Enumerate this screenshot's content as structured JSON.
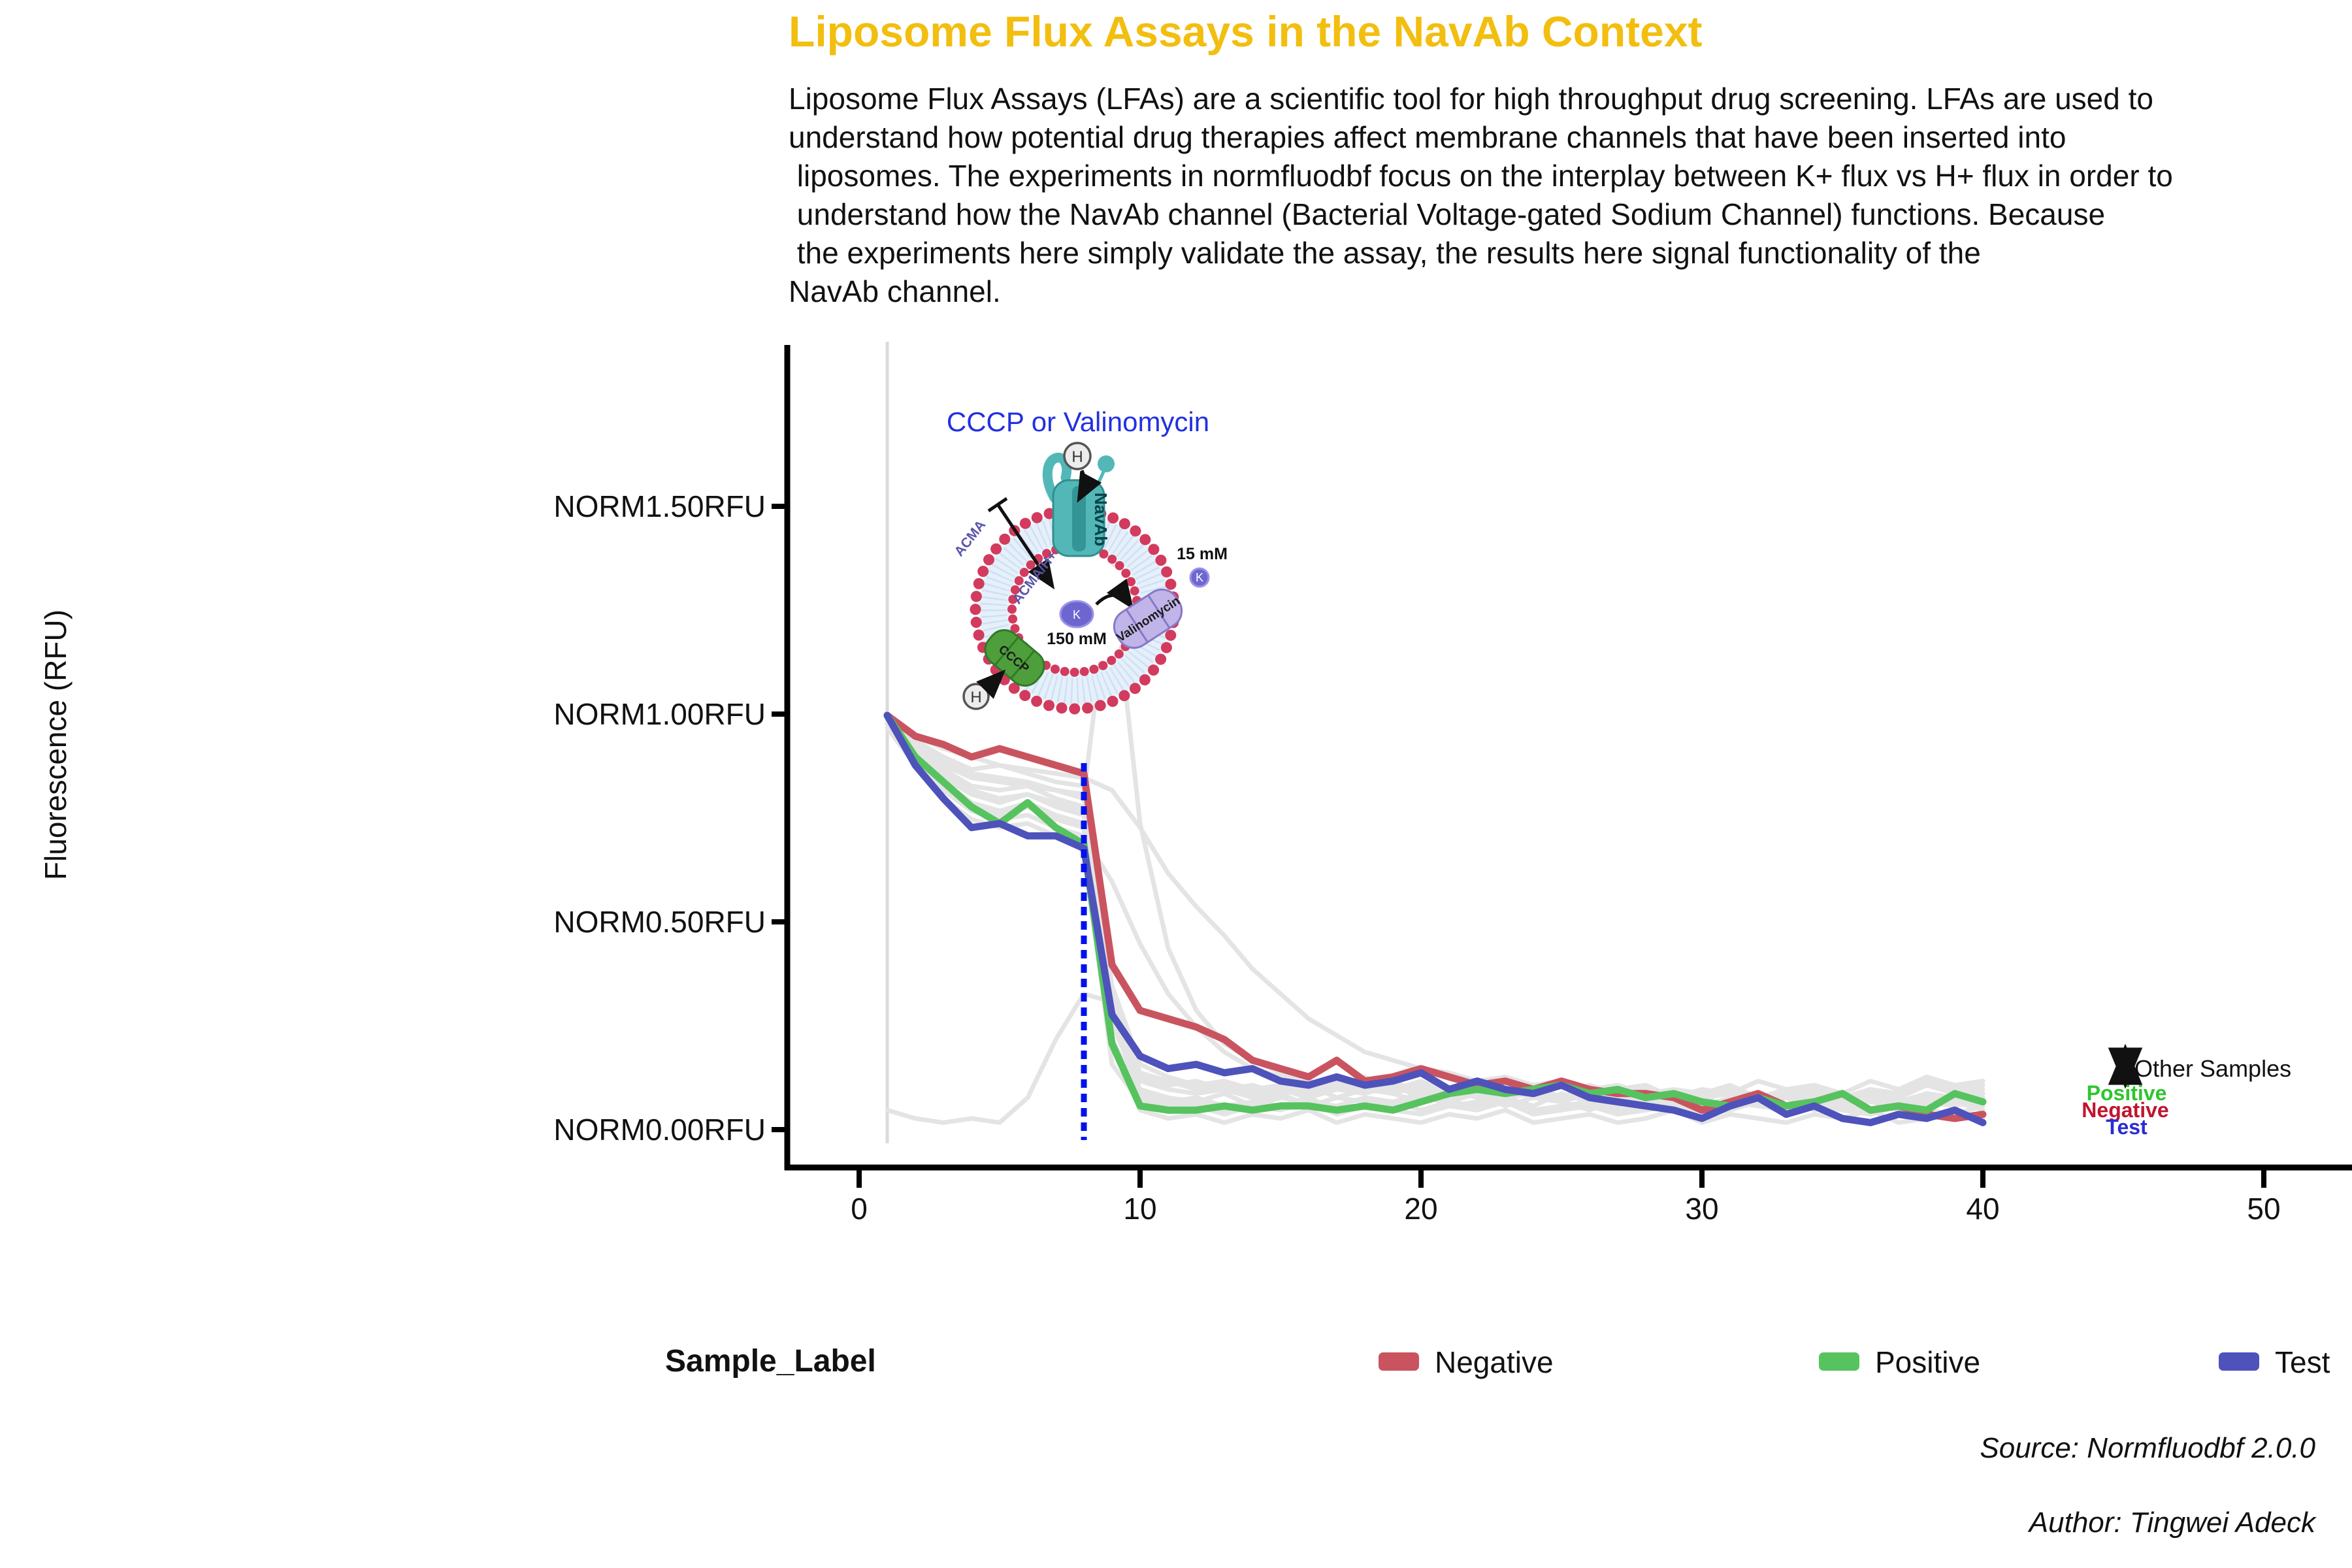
{
  "header": {
    "title": "Liposome Flux Assays in the NavAb Context",
    "intro_lines": [
      "Liposome Flux Assays (LFAs) are a scientific tool for high throughput drug screening. LFAs are used to",
      "understand how potential drug therapies affect membrane channels that have been inserted into",
      " liposomes. The experiments in normfluodbf focus on the interplay between K+ flux vs H+ flux in order to",
      " understand how the NavAb channel (Bacterial Voltage-gated Sodium Channel) functions. Because",
      " the experiments here simply validate the assay, the results here signal functionality of the",
      "NavAb channel."
    ],
    "title_color": "#F2BE0F"
  },
  "chart_data": {
    "type": "line",
    "title": "",
    "xlabel": "",
    "ylabel": "Fluorescence (RFU)",
    "x_ticks": [
      "0",
      "10",
      "20",
      "30",
      "40",
      "50"
    ],
    "y_ticks": [
      "NORM1.50RFU",
      "NORM1.00RFU",
      "NORM0.50RFU",
      "NORM0.00RFU"
    ],
    "y_tick_values": [
      1.5,
      1.0,
      0.5,
      0.0
    ],
    "xlim": [
      0,
      53
    ],
    "ylim": [
      -0.09,
      1.88
    ],
    "x_start": 1,
    "x_step": 1,
    "event_line_x": 8,
    "baseline_x": 1,
    "event_line_color": "#0011EE",
    "other_color": "#E4E4E4",
    "series": [
      {
        "name": "Negative",
        "color": "#C9545F",
        "values": [
          1.0,
          0.95,
          0.93,
          0.9,
          0.92,
          0.9,
          0.88,
          0.86,
          0.4,
          0.29,
          0.27,
          0.25,
          0.22,
          0.17,
          0.15,
          0.13,
          0.17,
          0.12,
          0.13,
          0.15,
          0.13,
          0.11,
          0.12,
          0.1,
          0.12,
          0.1,
          0.09,
          0.09,
          0.08,
          0.05,
          0.07,
          0.09,
          0.06,
          0.07,
          0.09,
          0.05,
          0.06,
          0.04,
          0.03,
          0.04
        ]
      },
      {
        "name": "Positive",
        "color": "#56C35F",
        "values": [
          1.0,
          0.9,
          0.84,
          0.78,
          0.74,
          0.79,
          0.73,
          0.69,
          0.21,
          0.06,
          0.05,
          0.05,
          0.06,
          0.05,
          0.06,
          0.06,
          0.05,
          0.06,
          0.05,
          0.07,
          0.09,
          0.1,
          0.09,
          0.1,
          0.11,
          0.09,
          0.1,
          0.08,
          0.09,
          0.07,
          0.06,
          0.08,
          0.06,
          0.07,
          0.09,
          0.05,
          0.06,
          0.05,
          0.09,
          0.07
        ]
      },
      {
        "name": "Test",
        "color": "#4E52BB",
        "values": [
          1.0,
          0.88,
          0.8,
          0.73,
          0.74,
          0.71,
          0.71,
          0.68,
          0.28,
          0.18,
          0.15,
          0.16,
          0.14,
          0.15,
          0.12,
          0.11,
          0.13,
          0.11,
          0.12,
          0.14,
          0.1,
          0.12,
          0.1,
          0.09,
          0.11,
          0.08,
          0.07,
          0.06,
          0.05,
          0.03,
          0.06,
          0.08,
          0.04,
          0.06,
          0.03,
          0.02,
          0.04,
          0.03,
          0.05,
          0.02
        ]
      }
    ],
    "other_series": [
      [
        0.99,
        0.94,
        0.9,
        0.87,
        0.88,
        0.86,
        0.84,
        0.83,
        0.32,
        0.14,
        0.12,
        0.1,
        0.11,
        0.09,
        0.1,
        0.08,
        0.1,
        0.09,
        0.11,
        0.08,
        0.09,
        0.1,
        0.08,
        0.09,
        0.07,
        0.1,
        0.08,
        0.07,
        0.09,
        0.06,
        0.08,
        0.07,
        0.09,
        0.06,
        0.08,
        0.07,
        0.06,
        0.09,
        0.07,
        0.08
      ],
      [
        0.98,
        0.91,
        0.85,
        0.81,
        0.79,
        0.81,
        0.78,
        0.76,
        0.26,
        0.1,
        0.08,
        0.07,
        0.09,
        0.06,
        0.08,
        0.07,
        0.06,
        0.08,
        0.07,
        0.09,
        0.06,
        0.07,
        0.08,
        0.06,
        0.09,
        0.07,
        0.06,
        0.08,
        0.05,
        0.07,
        0.06,
        0.08,
        0.05,
        0.07,
        0.06,
        0.05,
        0.08,
        0.06,
        0.07,
        0.05
      ],
      [
        0.97,
        0.88,
        0.8,
        0.75,
        0.73,
        0.74,
        0.71,
        0.69,
        0.16,
        0.07,
        0.05,
        0.06,
        0.04,
        0.06,
        0.05,
        0.07,
        0.04,
        0.06,
        0.05,
        0.04,
        0.06,
        0.05,
        0.07,
        0.04,
        0.05,
        0.06,
        0.04,
        0.05,
        0.06,
        0.04,
        0.05,
        0.07,
        0.04,
        0.06,
        0.05,
        0.04,
        0.06,
        0.05,
        0.04,
        0.06
      ],
      [
        0.99,
        0.95,
        0.92,
        0.9,
        0.88,
        0.87,
        0.86,
        0.85,
        0.82,
        0.73,
        0.62,
        0.54,
        0.47,
        0.39,
        0.33,
        0.27,
        0.23,
        0.19,
        0.17,
        0.15,
        0.14,
        0.12,
        0.13,
        0.11,
        0.12,
        0.1,
        0.11,
        0.09,
        0.1,
        0.09,
        0.11,
        0.08,
        0.1,
        0.09,
        0.08,
        0.1,
        0.07,
        0.09,
        0.08,
        0.09
      ],
      [
        0.98,
        0.92,
        0.88,
        0.85,
        0.84,
        0.83,
        0.82,
        0.81,
        1.36,
        0.74,
        0.44,
        0.29,
        0.21,
        0.17,
        0.14,
        0.12,
        0.11,
        0.13,
        0.1,
        0.12,
        0.09,
        0.11,
        0.1,
        0.08,
        0.11,
        0.09,
        0.1,
        0.08,
        0.09,
        0.07,
        0.1,
        0.08,
        0.09,
        0.07,
        0.08,
        0.1,
        0.07,
        0.09,
        0.08,
        0.07
      ],
      [
        0.05,
        0.03,
        0.02,
        0.03,
        0.02,
        0.08,
        0.22,
        0.33,
        0.31,
        0.05,
        0.03,
        0.04,
        0.02,
        0.04,
        0.03,
        0.05,
        0.02,
        0.04,
        0.03,
        0.02,
        0.04,
        0.03,
        0.05,
        0.02,
        0.03,
        0.04,
        0.02,
        0.03,
        0.05,
        0.02,
        0.04,
        0.03,
        0.02,
        0.04,
        0.03,
        0.05,
        0.02,
        0.03,
        0.04,
        0.03
      ],
      [
        0.99,
        0.93,
        0.87,
        0.83,
        0.82,
        0.83,
        0.8,
        0.78,
        0.28,
        0.12,
        0.1,
        0.09,
        0.1,
        0.08,
        0.09,
        0.11,
        0.08,
        0.1,
        0.09,
        0.07,
        0.1,
        0.08,
        0.09,
        0.11,
        0.07,
        0.09,
        0.08,
        0.1,
        0.07,
        0.08,
        0.09,
        0.06,
        0.08,
        0.1,
        0.07,
        0.09,
        0.08,
        0.11,
        0.09,
        0.1
      ],
      [
        0.98,
        0.9,
        0.83,
        0.78,
        0.76,
        0.78,
        0.75,
        0.73,
        0.22,
        0.09,
        0.07,
        0.08,
        0.06,
        0.07,
        0.09,
        0.06,
        0.08,
        0.07,
        0.06,
        0.08,
        0.07,
        0.09,
        0.06,
        0.08,
        0.07,
        0.05,
        0.08,
        0.06,
        0.07,
        0.05,
        0.07,
        0.06,
        0.08,
        0.05,
        0.07,
        0.08,
        0.05,
        0.07,
        0.06,
        0.08
      ],
      [
        0.97,
        0.89,
        0.82,
        0.77,
        0.75,
        0.76,
        0.73,
        0.71,
        0.6,
        0.45,
        0.33,
        0.25,
        0.19,
        0.15,
        0.13,
        0.11,
        0.1,
        0.12,
        0.09,
        0.11,
        0.08,
        0.1,
        0.09,
        0.11,
        0.08,
        0.09,
        0.1,
        0.07,
        0.09,
        0.08,
        0.1,
        0.07,
        0.09,
        0.08,
        0.07,
        0.09,
        0.06,
        0.08,
        0.07,
        0.09
      ],
      [
        0.99,
        0.92,
        0.86,
        0.82,
        0.8,
        0.81,
        0.79,
        0.77,
        0.3,
        0.13,
        0.11,
        0.12,
        0.1,
        0.11,
        0.09,
        0.1,
        0.12,
        0.09,
        0.11,
        0.1,
        0.08,
        0.11,
        0.09,
        0.1,
        0.12,
        0.09,
        0.1,
        0.11,
        0.08,
        0.1,
        0.09,
        0.12,
        0.1,
        0.11,
        0.09,
        0.12,
        0.1,
        0.13,
        0.11,
        0.12
      ],
      [
        0.98,
        0.93,
        0.89,
        0.86,
        0.85,
        0.84,
        0.82,
        0.8,
        0.35,
        0.16,
        0.13,
        0.11,
        0.12,
        0.1,
        0.11,
        0.09,
        0.11,
        0.1,
        0.12,
        0.09,
        0.1,
        0.11,
        0.09,
        0.1,
        0.08,
        0.11,
        0.09,
        0.1,
        0.08,
        0.09,
        0.1,
        0.07,
        0.09,
        0.11,
        0.08,
        0.1,
        0.09,
        0.12,
        0.1,
        0.11
      ],
      [
        0.97,
        0.9,
        0.84,
        0.79,
        0.77,
        0.79,
        0.76,
        0.74,
        0.2,
        0.08,
        0.06,
        0.07,
        0.05,
        0.07,
        0.06,
        0.08,
        0.05,
        0.06,
        0.07,
        0.05,
        0.07,
        0.06,
        0.08,
        0.05,
        0.06,
        0.07,
        0.05,
        0.06,
        0.08,
        0.05,
        0.07,
        0.06,
        0.05,
        0.07,
        0.06,
        0.08,
        0.05,
        0.06,
        0.07,
        0.06
      ]
    ]
  },
  "diagram": {
    "title": "CCCP or Valinomycin",
    "navab_label": "NavAb",
    "acma_label": "ACMA",
    "acma_h_label": "ACMA/H+",
    "h_ion": "H",
    "k_ion": "K",
    "inside_conc": "150 mM",
    "outside_conc": "15 mM",
    "valinomycin_label": "Valinomycin",
    "cccp_label": "CCCP",
    "bead_color": "#D23B5E",
    "membrane_color": "#E4F1FA",
    "navab_color": "#53B7B8",
    "cccp_color": "#4F9E3C",
    "valinomycin_color": "#C0B4E8",
    "ion_color": "#6E66D0"
  },
  "annotations": {
    "arrow_label": "Other Samples",
    "series_labels": [
      {
        "label": "Positive",
        "color": "#2DC52D"
      },
      {
        "label": "Negative",
        "color": "#C0152F"
      },
      {
        "label": "Test",
        "color": "#2B2BD5"
      }
    ]
  },
  "legend": {
    "title": "Sample_Label",
    "items": [
      {
        "label": "Negative",
        "color": "#C9545F"
      },
      {
        "label": "Positive",
        "color": "#56C35F"
      },
      {
        "label": "Test",
        "color": "#4E52BB"
      }
    ]
  },
  "footer": {
    "source": "Source: Normfluodbf 2.0.0",
    "author": "Author: Tingwei Adeck"
  }
}
